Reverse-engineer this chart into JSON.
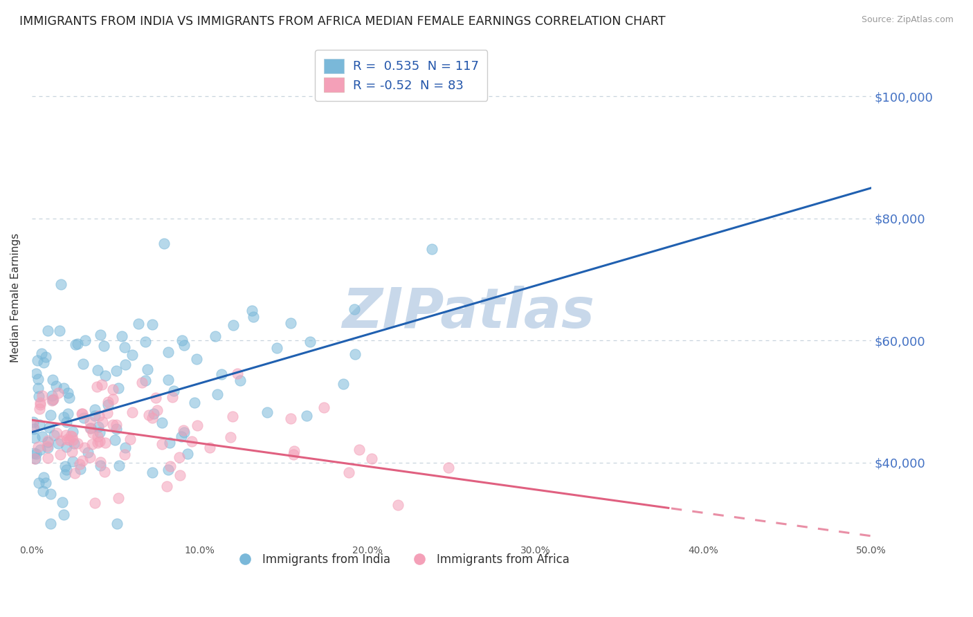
{
  "title": "IMMIGRANTS FROM INDIA VS IMMIGRANTS FROM AFRICA MEDIAN FEMALE EARNINGS CORRELATION CHART",
  "source": "Source: ZipAtlas.com",
  "ylabel": "Median Female Earnings",
  "xlim": [
    0.0,
    0.5
  ],
  "ylim": [
    27000,
    107000
  ],
  "xticks": [
    0.0,
    0.05,
    0.1,
    0.15,
    0.2,
    0.25,
    0.3,
    0.35,
    0.4,
    0.45,
    0.5
  ],
  "xticklabels": [
    "0.0%",
    "",
    "10.0%",
    "",
    "20.0%",
    "",
    "30.0%",
    "",
    "40.0%",
    "",
    "50.0%"
  ],
  "yticks_right": [
    40000,
    60000,
    80000,
    100000
  ],
  "ytick_labels_right": [
    "$40,000",
    "$60,000",
    "$80,000",
    "$100,000"
  ],
  "india_color": "#7ab8d9",
  "africa_color": "#f4a0b8",
  "india_line_color": "#2060b0",
  "africa_line_color": "#e06080",
  "R_india": 0.535,
  "N_india": 117,
  "R_africa": -0.52,
  "N_africa": 83,
  "legend_india_label": "Immigrants from India",
  "legend_africa_label": "Immigrants from Africa",
  "watermark": "ZIPatlas",
  "watermark_color": "#c8d8ea",
  "background_color": "#ffffff",
  "grid_color": "#c8d4de",
  "title_fontsize": 12.5,
  "axis_label_fontsize": 11,
  "tick_fontsize": 10,
  "right_tick_color": "#4472c4",
  "india_scatter_seed": 42,
  "africa_scatter_seed": 7,
  "india_line_intercept": 45000,
  "india_line_slope": 80000,
  "africa_line_intercept": 47000,
  "africa_line_slope": -38000
}
